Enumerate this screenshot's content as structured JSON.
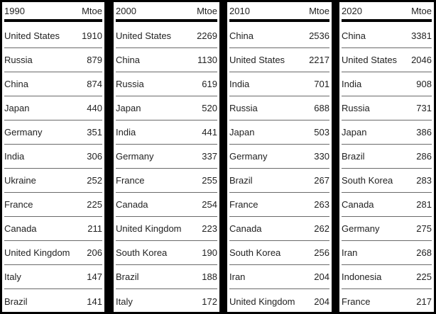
{
  "unit": "Mtoe",
  "columns": [
    {
      "year": "1990",
      "rows": [
        {
          "country": "United States",
          "value": "1910"
        },
        {
          "country": "Russia",
          "value": "879"
        },
        {
          "country": "China",
          "value": "874"
        },
        {
          "country": "Japan",
          "value": "440"
        },
        {
          "country": "Germany",
          "value": "351"
        },
        {
          "country": "India",
          "value": "306"
        },
        {
          "country": "Ukraine",
          "value": "252"
        },
        {
          "country": "France",
          "value": "225"
        },
        {
          "country": "Canada",
          "value": "211"
        },
        {
          "country": "United Kingdom",
          "value": "206"
        },
        {
          "country": "Italy",
          "value": "147"
        },
        {
          "country": "Brazil",
          "value": "141"
        }
      ]
    },
    {
      "year": "2000",
      "rows": [
        {
          "country": "United States",
          "value": "2269"
        },
        {
          "country": "China",
          "value": "1130"
        },
        {
          "country": "Russia",
          "value": "619"
        },
        {
          "country": "Japan",
          "value": "520"
        },
        {
          "country": "India",
          "value": "441"
        },
        {
          "country": "Germany",
          "value": "337"
        },
        {
          "country": "France",
          "value": "255"
        },
        {
          "country": "Canada",
          "value": "254"
        },
        {
          "country": "United Kingdom",
          "value": "223"
        },
        {
          "country": "South Korea",
          "value": "190"
        },
        {
          "country": "Brazil",
          "value": "188"
        },
        {
          "country": "Italy",
          "value": "172"
        }
      ]
    },
    {
      "year": "2010",
      "rows": [
        {
          "country": "China",
          "value": "2536"
        },
        {
          "country": "United States",
          "value": "2217"
        },
        {
          "country": "India",
          "value": "701"
        },
        {
          "country": "Russia",
          "value": "688"
        },
        {
          "country": "Japan",
          "value": "503"
        },
        {
          "country": "Germany",
          "value": "330"
        },
        {
          "country": "Brazil",
          "value": "267"
        },
        {
          "country": "France",
          "value": "263"
        },
        {
          "country": "Canada",
          "value": "262"
        },
        {
          "country": "South Korea",
          "value": "256"
        },
        {
          "country": "Iran",
          "value": "204"
        },
        {
          "country": "United Kingdom",
          "value": "204"
        }
      ]
    },
    {
      "year": "2020",
      "rows": [
        {
          "country": "China",
          "value": "3381"
        },
        {
          "country": "United States",
          "value": "2046"
        },
        {
          "country": "India",
          "value": "908"
        },
        {
          "country": "Russia",
          "value": "731"
        },
        {
          "country": "Japan",
          "value": "386"
        },
        {
          "country": "Brazil",
          "value": "286"
        },
        {
          "country": "South Korea",
          "value": "283"
        },
        {
          "country": "Canada",
          "value": "281"
        },
        {
          "country": "Germany",
          "value": "275"
        },
        {
          "country": "Iran",
          "value": "268"
        },
        {
          "country": "Indonesia",
          "value": "225"
        },
        {
          "country": "France",
          "value": "217"
        }
      ]
    }
  ]
}
